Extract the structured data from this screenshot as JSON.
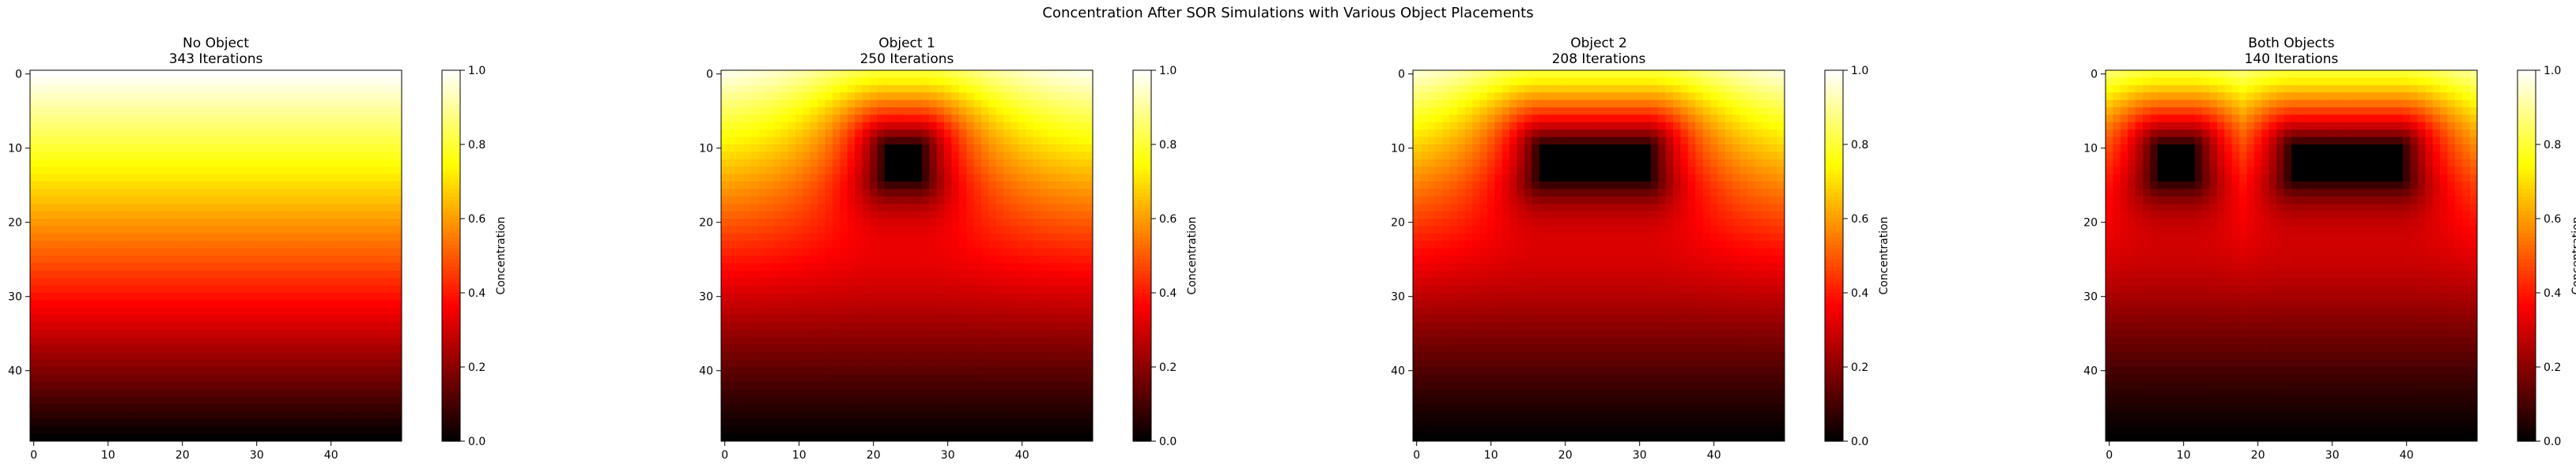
{
  "title": "Concentration After SOR Simulations with Various Object Placements",
  "chart_data": [
    {
      "type": "heatmap",
      "title_lines": [
        "No Object",
        "343 Iterations"
      ],
      "grid_size": 50,
      "x_ticks": [
        0,
        10,
        20,
        30,
        40
      ],
      "y_ticks": [
        0,
        10,
        20,
        30,
        40
      ],
      "colorbar_label": "Concentration",
      "colorbar_ticks": [
        "0.0",
        "0.2",
        "0.4",
        "0.6",
        "0.8",
        "1.0"
      ],
      "colormap": "hot",
      "clim": [
        0,
        1
      ],
      "objects": [],
      "decay": 0
    },
    {
      "type": "heatmap",
      "title_lines": [
        "Object 1",
        "250 Iterations"
      ],
      "grid_size": 50,
      "x_ticks": [
        0,
        10,
        20,
        30,
        40
      ],
      "y_ticks": [
        0,
        10,
        20,
        30,
        40
      ],
      "colorbar_label": "Concentration",
      "colorbar_ticks": [
        "0.0",
        "0.2",
        "0.4",
        "0.6",
        "0.8",
        "1.0"
      ],
      "colormap": "hot",
      "clim": [
        0,
        1
      ],
      "objects": [
        {
          "x0": 22,
          "x1": 27,
          "y0": 10,
          "y1": 15
        }
      ],
      "decay": 0.55
    },
    {
      "type": "heatmap",
      "title_lines": [
        "Object 2",
        "208 Iterations"
      ],
      "grid_size": 50,
      "x_ticks": [
        0,
        10,
        20,
        30,
        40
      ],
      "y_ticks": [
        0,
        10,
        20,
        30,
        40
      ],
      "colorbar_label": "Concentration",
      "colorbar_ticks": [
        "0.0",
        "0.2",
        "0.4",
        "0.6",
        "0.8",
        "1.0"
      ],
      "colormap": "hot",
      "clim": [
        0,
        1
      ],
      "objects": [
        {
          "x0": 17,
          "x1": 32,
          "y0": 10,
          "y1": 15
        }
      ],
      "decay": 0.75
    },
    {
      "type": "heatmap",
      "title_lines": [
        "Both Objects",
        "140 Iterations"
      ],
      "grid_size": 50,
      "x_ticks": [
        0,
        10,
        20,
        30,
        40
      ],
      "y_ticks": [
        0,
        10,
        20,
        30,
        40
      ],
      "colorbar_label": "Concentration",
      "colorbar_ticks": [
        "0.0",
        "0.2",
        "0.4",
        "0.6",
        "0.8",
        "1.0"
      ],
      "colormap": "hot",
      "clim": [
        0,
        1
      ],
      "objects": [
        {
          "x0": 7,
          "x1": 12,
          "y0": 10,
          "y1": 15
        },
        {
          "x0": 25,
          "x1": 40,
          "y0": 10,
          "y1": 15
        }
      ],
      "decay": 0.9
    }
  ]
}
